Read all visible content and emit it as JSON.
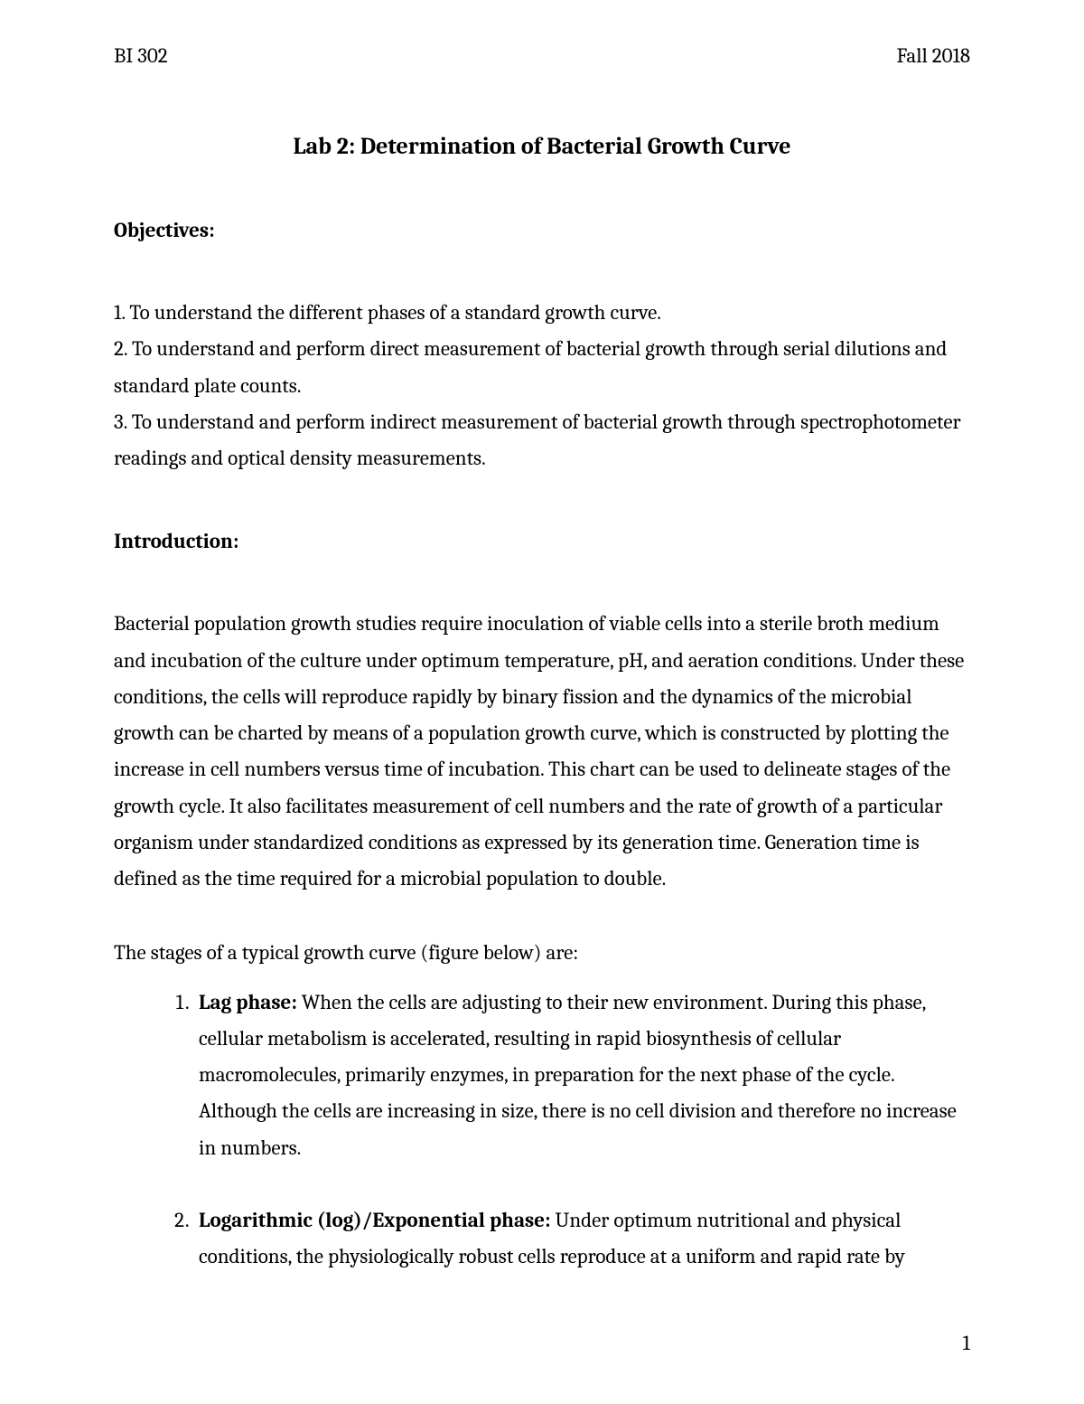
{
  "header": {
    "left": "BI 302",
    "right": "Fall 2018"
  },
  "title": "Lab 2: Determination of Bacterial Growth Curve",
  "objectives": {
    "heading": "Objectives:",
    "items": [
      "1. To understand the different phases of a standard growth curve.",
      "2. To understand and perform direct measurement of bacterial growth through serial dilutions and standard plate counts.",
      "3. To understand and perform indirect measurement of bacterial growth through spectrophotometer readings and optical density measurements."
    ]
  },
  "introduction": {
    "heading": "Introduction:",
    "para": "Bacterial population growth studies require inoculation of viable cells into a sterile broth medium and incubation of the culture under optimum temperature, pH, and aeration conditions. Under these conditions, the cells will reproduce rapidly by binary fission and the dynamics of the microbial growth can be charted by means of a population growth curve, which is constructed by plotting the increase in cell numbers versus time of incubation. This chart can be used to delineate stages of the growth cycle. It also facilitates measurement of cell numbers and the rate of growth of a particular organism under standardized conditions as expressed by its generation time. Generation time is defined as the time required for a microbial population to double."
  },
  "stages": {
    "intro": "The stages of a typical growth curve (figure below) are:",
    "items": [
      {
        "label": "Lag phase:",
        "text": "  When the cells are adjusting to their new environment. During this phase, cellular metabolism is accelerated, resulting in rapid biosynthesis of cellular macromolecules, primarily enzymes, in preparation for the next phase of the cycle. Although the cells are increasing in size, there is no cell division and therefore no increase in numbers."
      },
      {
        "label": "Logarithmic (log)/Exponential phase:",
        "text": " Under optimum nutritional and physical conditions, the physiologically robust cells reproduce at a uniform and rapid rate by"
      }
    ]
  },
  "pageNumber": "1"
}
